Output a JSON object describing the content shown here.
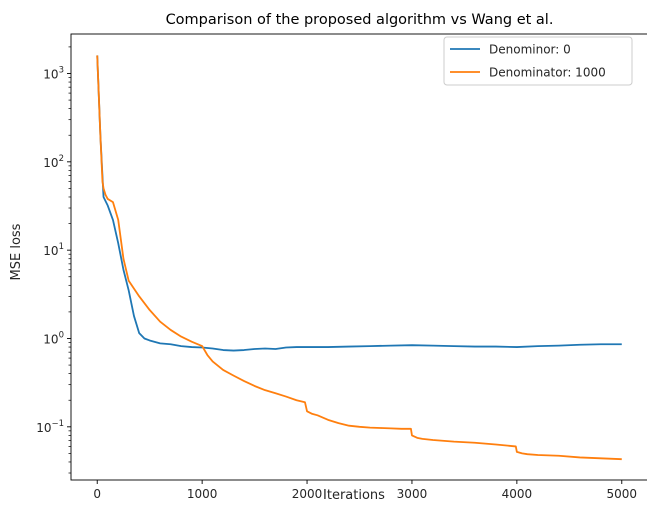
{
  "chart_data": {
    "type": "line",
    "title": "Comparison of the proposed algorithm vs Wang et al.",
    "xlabel": "Iterations",
    "ylabel": "MSE loss",
    "yscale": "log",
    "xlim": [
      -250,
      5250
    ],
    "ylim": [
      0.025,
      2800
    ],
    "xticks": [
      0,
      1000,
      2000,
      3000,
      4000,
      5000
    ],
    "xtick_labels": [
      "0",
      "1000",
      "2000",
      "3000",
      "4000",
      "5000"
    ],
    "yticks": [
      0.1,
      1,
      10,
      100,
      1000
    ],
    "ytick_labels": [
      {
        "base": "10",
        "exp": "−1"
      },
      {
        "base": "10",
        "exp": "0"
      },
      {
        "base": "10",
        "exp": "1"
      },
      {
        "base": "10",
        "exp": "2"
      },
      {
        "base": "10",
        "exp": "3"
      }
    ],
    "grid": false,
    "legend_position": "top-right",
    "series": [
      {
        "name": "Denominor: 0",
        "color": "#1f77b4",
        "x": [
          0,
          30,
          60,
          100,
          150,
          200,
          250,
          300,
          350,
          400,
          450,
          500,
          600,
          700,
          800,
          900,
          1000,
          1100,
          1200,
          1300,
          1400,
          1500,
          1600,
          1700,
          1800,
          1900,
          2000,
          2200,
          2400,
          2600,
          2800,
          3000,
          3200,
          3400,
          3600,
          3800,
          4000,
          4200,
          4400,
          4600,
          4800,
          5000
        ],
        "y": [
          1600,
          200,
          40,
          32,
          22,
          12,
          6,
          3.5,
          1.8,
          1.15,
          1.0,
          0.95,
          0.88,
          0.86,
          0.82,
          0.8,
          0.79,
          0.77,
          0.74,
          0.73,
          0.74,
          0.76,
          0.77,
          0.76,
          0.79,
          0.8,
          0.8,
          0.8,
          0.81,
          0.82,
          0.83,
          0.84,
          0.83,
          0.82,
          0.81,
          0.81,
          0.8,
          0.82,
          0.83,
          0.85,
          0.86,
          0.86
        ]
      },
      {
        "name": "Denominator: 1000",
        "color": "#ff7f0e",
        "x": [
          0,
          30,
          50,
          60,
          80,
          100,
          150,
          200,
          250,
          300,
          400,
          500,
          600,
          700,
          800,
          900,
          1000,
          1050,
          1100,
          1200,
          1300,
          1400,
          1500,
          1600,
          1700,
          1800,
          1900,
          1980,
          2000,
          2050,
          2100,
          2200,
          2300,
          2400,
          2500,
          2600,
          2700,
          2800,
          2900,
          2990,
          3000,
          3050,
          3100,
          3200,
          3400,
          3600,
          3800,
          3990,
          4000,
          4050,
          4100,
          4200,
          4400,
          4600,
          4800,
          5000
        ],
        "y": [
          1600,
          200,
          60,
          50,
          42,
          38,
          35,
          22,
          8,
          4.5,
          3.0,
          2.1,
          1.55,
          1.25,
          1.05,
          0.92,
          0.82,
          0.65,
          0.55,
          0.44,
          0.38,
          0.33,
          0.29,
          0.26,
          0.24,
          0.22,
          0.2,
          0.19,
          0.15,
          0.14,
          0.135,
          0.12,
          0.11,
          0.103,
          0.1,
          0.098,
          0.097,
          0.096,
          0.095,
          0.095,
          0.08,
          0.075,
          0.073,
          0.071,
          0.068,
          0.066,
          0.063,
          0.06,
          0.052,
          0.05,
          0.049,
          0.048,
          0.047,
          0.045,
          0.044,
          0.043
        ]
      }
    ]
  }
}
